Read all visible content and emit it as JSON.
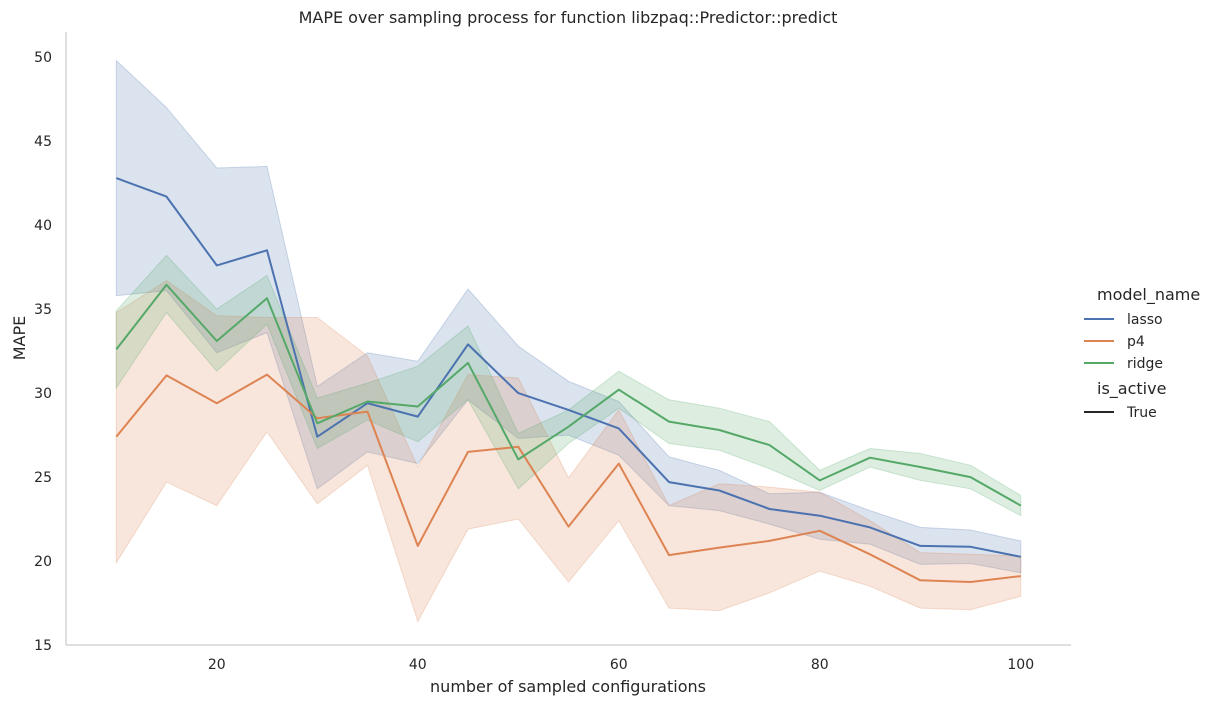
{
  "chart_data": {
    "type": "line",
    "title": "MAPE over sampling process for function libzpaq::Predictor::predict",
    "xlabel": "number of sampled configurations",
    "ylabel": "MAPE",
    "xlim": [
      5,
      105
    ],
    "ylim": [
      15,
      51.5
    ],
    "xticks": [
      20,
      40,
      60,
      80,
      100
    ],
    "yticks": [
      15,
      20,
      25,
      30,
      35,
      40,
      45,
      50
    ],
    "grid": false,
    "legend": {
      "position": "right",
      "hue_title": "model_name",
      "style_title": "is_active",
      "style_entries": [
        "True"
      ]
    },
    "x": [
      10,
      15,
      20,
      25,
      30,
      35,
      40,
      45,
      50,
      55,
      60,
      65,
      70,
      75,
      80,
      85,
      90,
      95,
      100
    ],
    "series": [
      {
        "name": "lasso",
        "color": "#4c72b0",
        "values": [
          42.8,
          41.7,
          37.6,
          38.5,
          27.4,
          29.4,
          28.6,
          32.9,
          30.0,
          29.0,
          27.9,
          24.7,
          24.2,
          23.1,
          22.7,
          22.0,
          20.9,
          20.85,
          20.25
        ],
        "lower": [
          35.8,
          36.1,
          32.4,
          33.6,
          24.3,
          26.5,
          25.8,
          29.6,
          27.3,
          27.5,
          26.3,
          23.3,
          23.0,
          22.2,
          21.3,
          21.0,
          19.8,
          19.85,
          19.3
        ],
        "upper": [
          49.8,
          47.0,
          43.4,
          43.5,
          30.4,
          32.4,
          31.9,
          36.2,
          32.8,
          30.7,
          29.5,
          26.2,
          25.4,
          24.0,
          24.1,
          23.0,
          22.0,
          21.85,
          21.2
        ]
      },
      {
        "name": "p4",
        "color": "#dd8452",
        "values": [
          27.4,
          31.05,
          29.4,
          31.1,
          28.5,
          28.9,
          20.9,
          26.5,
          26.8,
          22.05,
          25.8,
          20.35,
          20.8,
          21.2,
          21.8,
          20.4,
          18.85,
          18.75,
          19.1
        ],
        "lower": [
          19.9,
          24.7,
          23.3,
          27.7,
          23.4,
          25.7,
          16.4,
          21.9,
          22.5,
          18.75,
          22.4,
          17.2,
          17.05,
          18.1,
          19.4,
          18.5,
          17.2,
          17.1,
          17.9
        ],
        "upper": [
          34.8,
          36.7,
          34.6,
          34.5,
          34.5,
          32.2,
          25.6,
          31.1,
          30.9,
          24.95,
          29.0,
          23.3,
          24.6,
          24.4,
          24.1,
          22.4,
          20.5,
          20.4,
          20.3
        ]
      },
      {
        "name": "ridge",
        "color": "#55a868",
        "values": [
          32.6,
          36.45,
          33.1,
          35.65,
          28.2,
          29.5,
          29.2,
          31.8,
          26.05,
          28.0,
          30.2,
          28.3,
          27.8,
          26.9,
          24.8,
          26.15,
          25.6,
          25.0,
          23.3
        ],
        "lower": [
          30.3,
          34.8,
          31.3,
          34.1,
          26.7,
          28.4,
          27.1,
          29.6,
          24.3,
          27.0,
          29.1,
          27.0,
          26.6,
          25.5,
          24.2,
          25.6,
          24.8,
          24.3,
          22.7
        ],
        "upper": [
          34.9,
          38.2,
          35.0,
          37.0,
          29.7,
          30.6,
          31.6,
          34.0,
          27.6,
          29.0,
          31.3,
          29.6,
          29.1,
          28.3,
          25.4,
          26.7,
          26.4,
          25.7,
          23.9
        ]
      }
    ]
  }
}
